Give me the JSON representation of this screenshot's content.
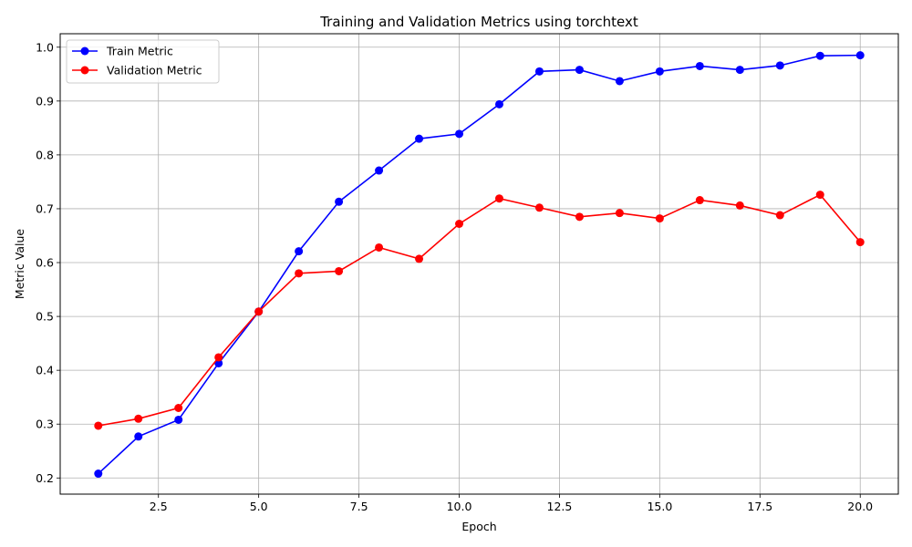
{
  "chart_data": {
    "type": "line",
    "title": "Training and Validation Metrics using torchtext",
    "xlabel": "Epoch",
    "ylabel": "Metric Value",
    "x": [
      1,
      2,
      3,
      4,
      5,
      6,
      7,
      8,
      9,
      10,
      11,
      12,
      13,
      14,
      15,
      16,
      17,
      18,
      19,
      20
    ],
    "xlim": [
      0.05,
      20.95
    ],
    "ylim": [
      0.17,
      1.025
    ],
    "xticks": [
      2.5,
      5.0,
      7.5,
      10.0,
      12.5,
      15.0,
      17.5,
      20.0
    ],
    "xtick_labels": [
      "2.5",
      "5.0",
      "7.5",
      "10.0",
      "12.5",
      "15.0",
      "17.5",
      "20.0"
    ],
    "yticks": [
      0.2,
      0.3,
      0.4,
      0.5,
      0.6,
      0.7,
      0.8,
      0.9,
      1.0
    ],
    "ytick_labels": [
      "0.2",
      "0.3",
      "0.4",
      "0.5",
      "0.6",
      "0.7",
      "0.8",
      "0.9",
      "1.0"
    ],
    "grid": true,
    "legend_position": "top-left",
    "series": [
      {
        "name": "Train Metric",
        "color": "#0000ff",
        "marker": "circle",
        "values": [
          0.208,
          0.277,
          0.308,
          0.413,
          0.509,
          0.621,
          0.713,
          0.771,
          0.83,
          0.839,
          0.894,
          0.955,
          0.958,
          0.937,
          0.955,
          0.965,
          0.958,
          0.966,
          0.984,
          0.985
        ]
      },
      {
        "name": "Validation Metric",
        "color": "#ff0000",
        "marker": "circle",
        "values": [
          0.297,
          0.31,
          0.33,
          0.424,
          0.509,
          0.58,
          0.584,
          0.628,
          0.607,
          0.672,
          0.719,
          0.702,
          0.685,
          0.692,
          0.682,
          0.716,
          0.706,
          0.688,
          0.726,
          0.638
        ]
      }
    ]
  }
}
